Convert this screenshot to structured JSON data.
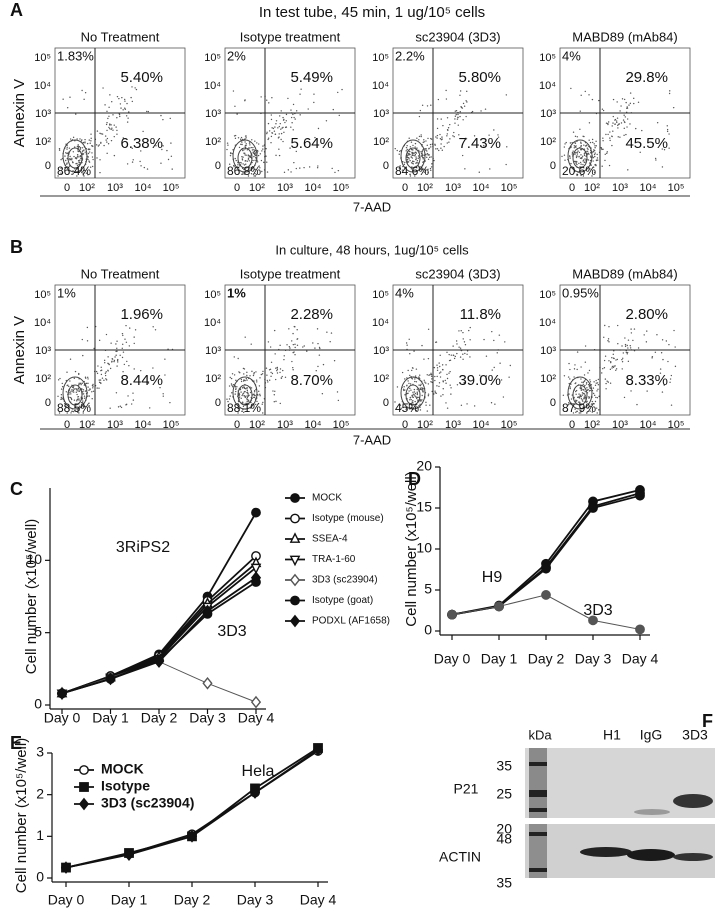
{
  "panel_labels": [
    "A",
    "B",
    "C",
    "D",
    "E",
    "F"
  ],
  "flow": [
    {
      "header": "In test tube,  45 min,  1 ug/10⁵ cells",
      "y_label": "Annexin V",
      "x_label": "7-AAD",
      "y_ticks": [
        "10⁵",
        "10⁴",
        "10³",
        "10²",
        "0"
      ],
      "x_ticks": [
        "0",
        "10²",
        "10³",
        "10⁴",
        "10⁵"
      ],
      "plots": [
        {
          "title": "No Treatment",
          "upper_left": "1.83%",
          "upper_right": "5.40%",
          "lower_right": "6.38%",
          "lower_left": "86.4%"
        },
        {
          "title": "Isotype treatment",
          "upper_left": "2%",
          "upper_right": "5.49%",
          "lower_right": "5.64%",
          "lower_left": "86.8%"
        },
        {
          "title": "sc23904 (3D3)",
          "upper_left": "2.2%",
          "upper_right": "5.80%",
          "lower_right": "7.43%",
          "lower_left": "84.6%"
        },
        {
          "title": "MABD89 (mAb84)",
          "upper_left": "4%",
          "upper_right": "29.8%",
          "lower_right": "45.5%",
          "lower_left": "20.6%"
        }
      ]
    },
    {
      "header": "In culture,   48 hours,    1ug/10⁵ cells",
      "y_label": "Annexin V",
      "x_label": "7-AAD",
      "y_ticks": [
        "10⁵",
        "10⁴",
        "10³",
        "10²",
        "0"
      ],
      "x_ticks": [
        "0",
        "10²",
        "10³",
        "10⁴",
        "10⁵"
      ],
      "plots": [
        {
          "title": "No Treatment",
          "upper_left": "1%",
          "upper_right": "1.96%",
          "lower_right": "8.44%",
          "lower_left": "88.5%"
        },
        {
          "title": "Isotype treatment",
          "upper_left": "1%",
          "upper_right": "2.28%",
          "lower_right": "8.70%",
          "lower_left": "88.1%"
        },
        {
          "title": "sc23904 (3D3)",
          "upper_left": "4%",
          "upper_right": "11.8%",
          "lower_right": "39.0%",
          "lower_left": "45%"
        },
        {
          "title": "MABD89 (mAb84)",
          "upper_left": "0.95%",
          "upper_right": "2.80%",
          "lower_right": "8.33%",
          "lower_left": "87.9%"
        }
      ]
    }
  ],
  "chart_data": [
    {
      "type": "line",
      "y_label": "Cell number (x10⁵/well)",
      "annotations": [
        "3RiPS2",
        "3D3"
      ],
      "categories": [
        "Day 0",
        "Day 1",
        "Day 2",
        "Day 3",
        "Day 4"
      ],
      "ylim": [
        0,
        15
      ],
      "yticks": [
        0,
        5,
        10
      ],
      "legend": "right",
      "series": [
        {
          "name": "MOCK",
          "color": "#111111",
          "marker": "circle",
          "values": [
            0.8,
            2.0,
            3.5,
            7.5,
            13.3
          ]
        },
        {
          "name": "Isotype (mouse)",
          "color": "#111111",
          "marker": "circle-open",
          "values": [
            0.8,
            2.0,
            3.4,
            7.2,
            10.3
          ]
        },
        {
          "name": "SSEA-4",
          "color": "#111111",
          "marker": "triangle",
          "values": [
            0.8,
            1.9,
            3.3,
            7.0,
            9.8
          ]
        },
        {
          "name": "TRA-1-60",
          "color": "#111111",
          "marker": "triangle-down",
          "values": [
            0.8,
            1.9,
            3.2,
            6.8,
            9.5
          ]
        },
        {
          "name": "3D3 (sc23904)",
          "color": "#555555",
          "marker": "diamond-open",
          "values": [
            0.8,
            1.9,
            3.0,
            1.5,
            0.2
          ]
        },
        {
          "name": "Isotype (goat)",
          "color": "#111111",
          "marker": "circle",
          "values": [
            0.8,
            1.8,
            3.1,
            6.3,
            8.5
          ]
        },
        {
          "name": "PODXL (AF1658)",
          "color": "#111111",
          "marker": "diamond",
          "values": [
            0.8,
            1.8,
            3.0,
            6.5,
            8.8
          ]
        }
      ]
    },
    {
      "type": "line",
      "y_label": "Cell number (x10⁵/well)",
      "annotations": [
        "H9",
        "3D3"
      ],
      "categories": [
        "Day 0",
        "Day 1",
        "Day 2",
        "Day 3",
        "Day 4"
      ],
      "ylim": [
        0,
        20
      ],
      "yticks": [
        0,
        5,
        10,
        15,
        20
      ],
      "series": [
        {
          "color": "#111111",
          "marker": "circle",
          "values": [
            2.0,
            3.1,
            8.2,
            15.8,
            17.2
          ]
        },
        {
          "color": "#111111",
          "marker": "circle",
          "values": [
            2.0,
            3.0,
            7.8,
            15.2,
            16.8
          ]
        },
        {
          "color": "#111111",
          "marker": "circle",
          "values": [
            2.0,
            3.0,
            7.6,
            15.0,
            16.5
          ]
        },
        {
          "color": "#555555",
          "marker": "circle",
          "values": [
            2.0,
            3.0,
            4.4,
            1.3,
            0.2
          ]
        }
      ]
    },
    {
      "type": "line",
      "y_label": "Cell number (x10⁵/well)",
      "annotations": [
        "Hela"
      ],
      "categories": [
        "Day 0",
        "Day 1",
        "Day 2",
        "Day 3",
        "Day 4"
      ],
      "ylim": [
        0,
        3
      ],
      "yticks": [
        0,
        1,
        2,
        3
      ],
      "legend": "upper left",
      "series": [
        {
          "name": "MOCK",
          "color": "#111111",
          "marker": "circle-open",
          "values": [
            0.25,
            0.58,
            1.05,
            2.05,
            3.05
          ]
        },
        {
          "name": "Isotype",
          "color": "#111111",
          "marker": "square",
          "values": [
            0.25,
            0.6,
            1.0,
            2.15,
            3.12
          ]
        },
        {
          "name": "3D3 (sc23904)",
          "color": "#111111",
          "marker": "diamond",
          "values": [
            0.25,
            0.56,
            1.0,
            2.05,
            3.08
          ]
        }
      ]
    }
  ],
  "blot": {
    "unit": "kDa",
    "lanes": [
      "H1",
      "IgG",
      "3D3"
    ],
    "top": {
      "label": "P21",
      "markers": [
        "35",
        "25",
        "20"
      ]
    },
    "bottom": {
      "label": "ACTIN",
      "markers": [
        "48",
        "35"
      ]
    }
  }
}
